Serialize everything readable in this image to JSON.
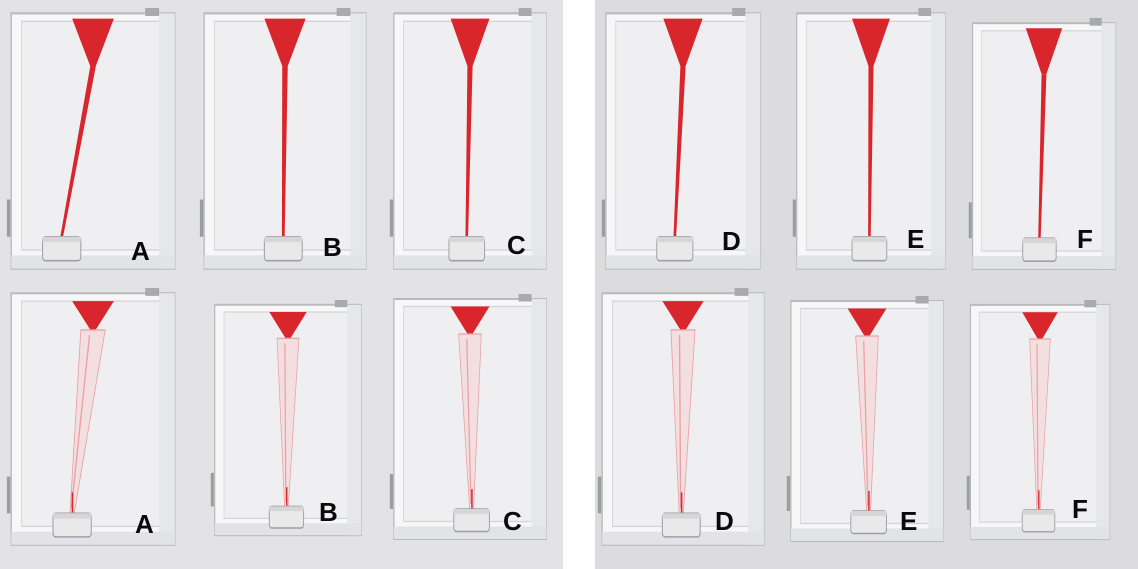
{
  "colors": {
    "dye": "#d9252c",
    "dye_faded": "#e8a3a7",
    "block": "#f7f7f8",
    "block_edge": "#b9babd",
    "background_left": "#e3e3e5",
    "background_right": "#dcdcde",
    "divider": "#ffffff",
    "label": "#0a0a0a"
  },
  "panels": {
    "top_row": [
      {
        "label": "A",
        "state": "filled"
      },
      {
        "label": "B",
        "state": "filled"
      },
      {
        "label": "C",
        "state": "filled"
      },
      {
        "label": "D",
        "state": "filled"
      },
      {
        "label": "E",
        "state": "filled"
      },
      {
        "label": "F",
        "state": "filled"
      }
    ],
    "bottom_row": [
      {
        "label": "A",
        "state": "drained"
      },
      {
        "label": "B",
        "state": "drained"
      },
      {
        "label": "C",
        "state": "drained"
      },
      {
        "label": "D",
        "state": "drained"
      },
      {
        "label": "E",
        "state": "drained"
      },
      {
        "label": "F",
        "state": "drained"
      }
    ]
  }
}
